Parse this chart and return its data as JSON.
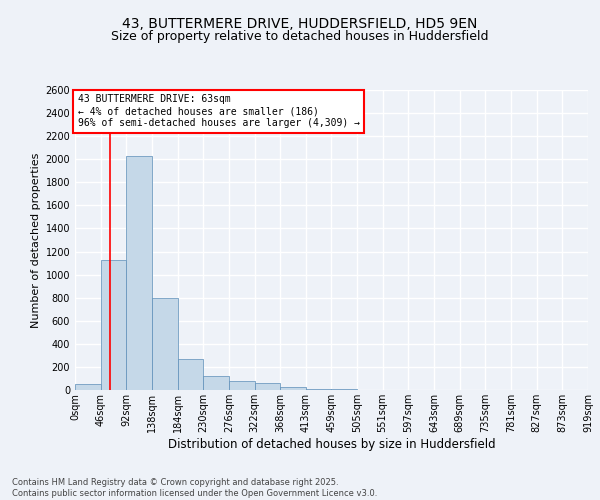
{
  "title_line1": "43, BUTTERMERE DRIVE, HUDDERSFIELD, HD5 9EN",
  "title_line2": "Size of property relative to detached houses in Huddersfield",
  "xlabel": "Distribution of detached houses by size in Huddersfield",
  "ylabel": "Number of detached properties",
  "footnote": "Contains HM Land Registry data © Crown copyright and database right 2025.\nContains public sector information licensed under the Open Government Licence v3.0.",
  "annotation_title": "43 BUTTERMERE DRIVE: 63sqm",
  "annotation_line2": "← 4% of detached houses are smaller (186)",
  "annotation_line3": "96% of semi-detached houses are larger (4,309) →",
  "bar_color": "#c5d8e8",
  "bar_edge_color": "#5b8db8",
  "vline_color": "red",
  "vline_x": 63,
  "ylim": [
    0,
    2600
  ],
  "yticks": [
    0,
    200,
    400,
    600,
    800,
    1000,
    1200,
    1400,
    1600,
    1800,
    2000,
    2200,
    2400,
    2600
  ],
  "bin_edges": [
    0,
    46,
    92,
    138,
    184,
    230,
    276,
    322,
    368,
    413,
    459,
    505,
    551,
    597,
    643,
    689,
    735,
    781,
    827,
    873,
    919
  ],
  "bin_labels": [
    "0sqm",
    "46sqm",
    "92sqm",
    "138sqm",
    "184sqm",
    "230sqm",
    "276sqm",
    "322sqm",
    "368sqm",
    "413sqm",
    "459sqm",
    "505sqm",
    "551sqm",
    "597sqm",
    "643sqm",
    "689sqm",
    "735sqm",
    "781sqm",
    "827sqm",
    "873sqm",
    "919sqm"
  ],
  "bar_heights": [
    50,
    1130,
    2030,
    800,
    270,
    120,
    80,
    60,
    30,
    10,
    10,
    0,
    0,
    0,
    0,
    0,
    0,
    0,
    0,
    0
  ],
  "background_color": "#eef2f8",
  "plot_bg_color": "#eef2f8",
  "grid_color": "#ffffff",
  "title1_fontsize": 10,
  "title2_fontsize": 9,
  "ylabel_fontsize": 8,
  "xlabel_fontsize": 8.5,
  "tick_fontsize": 7,
  "annot_fontsize": 7,
  "footnote_fontsize": 6
}
